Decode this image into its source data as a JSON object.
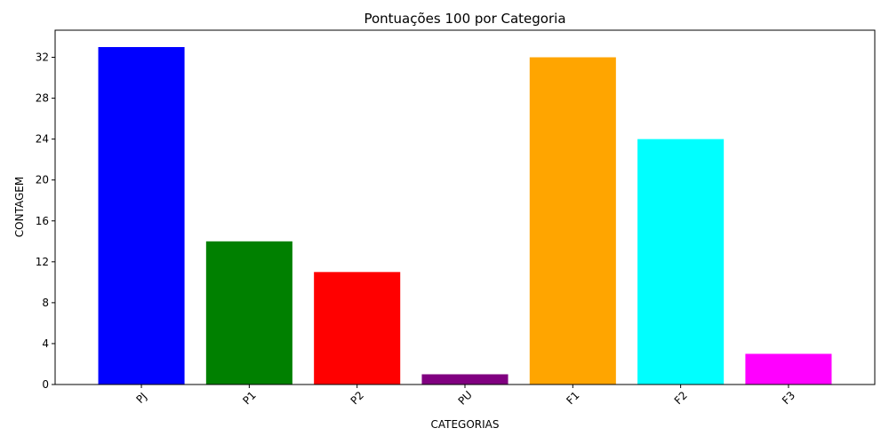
{
  "chart_data": {
    "type": "bar",
    "title": "Pontuações 100 por Categoria",
    "xlabel": "CATEGORIAS",
    "ylabel": "CONTAGEM",
    "categories": [
      "PJ",
      "P1",
      "P2",
      "PU",
      "F1",
      "F2",
      "F3"
    ],
    "values": [
      33,
      14,
      11,
      1,
      32,
      24,
      3
    ],
    "colors": [
      "#0000ff",
      "#008000",
      "#ff0000",
      "#800080",
      "#ffa500",
      "#00ffff",
      "#ff00ff"
    ],
    "yticks": [
      0,
      4,
      8,
      12,
      16,
      20,
      24,
      28,
      32
    ],
    "ylim": [
      0,
      34.65
    ],
    "grid": false,
    "legend": "none"
  }
}
